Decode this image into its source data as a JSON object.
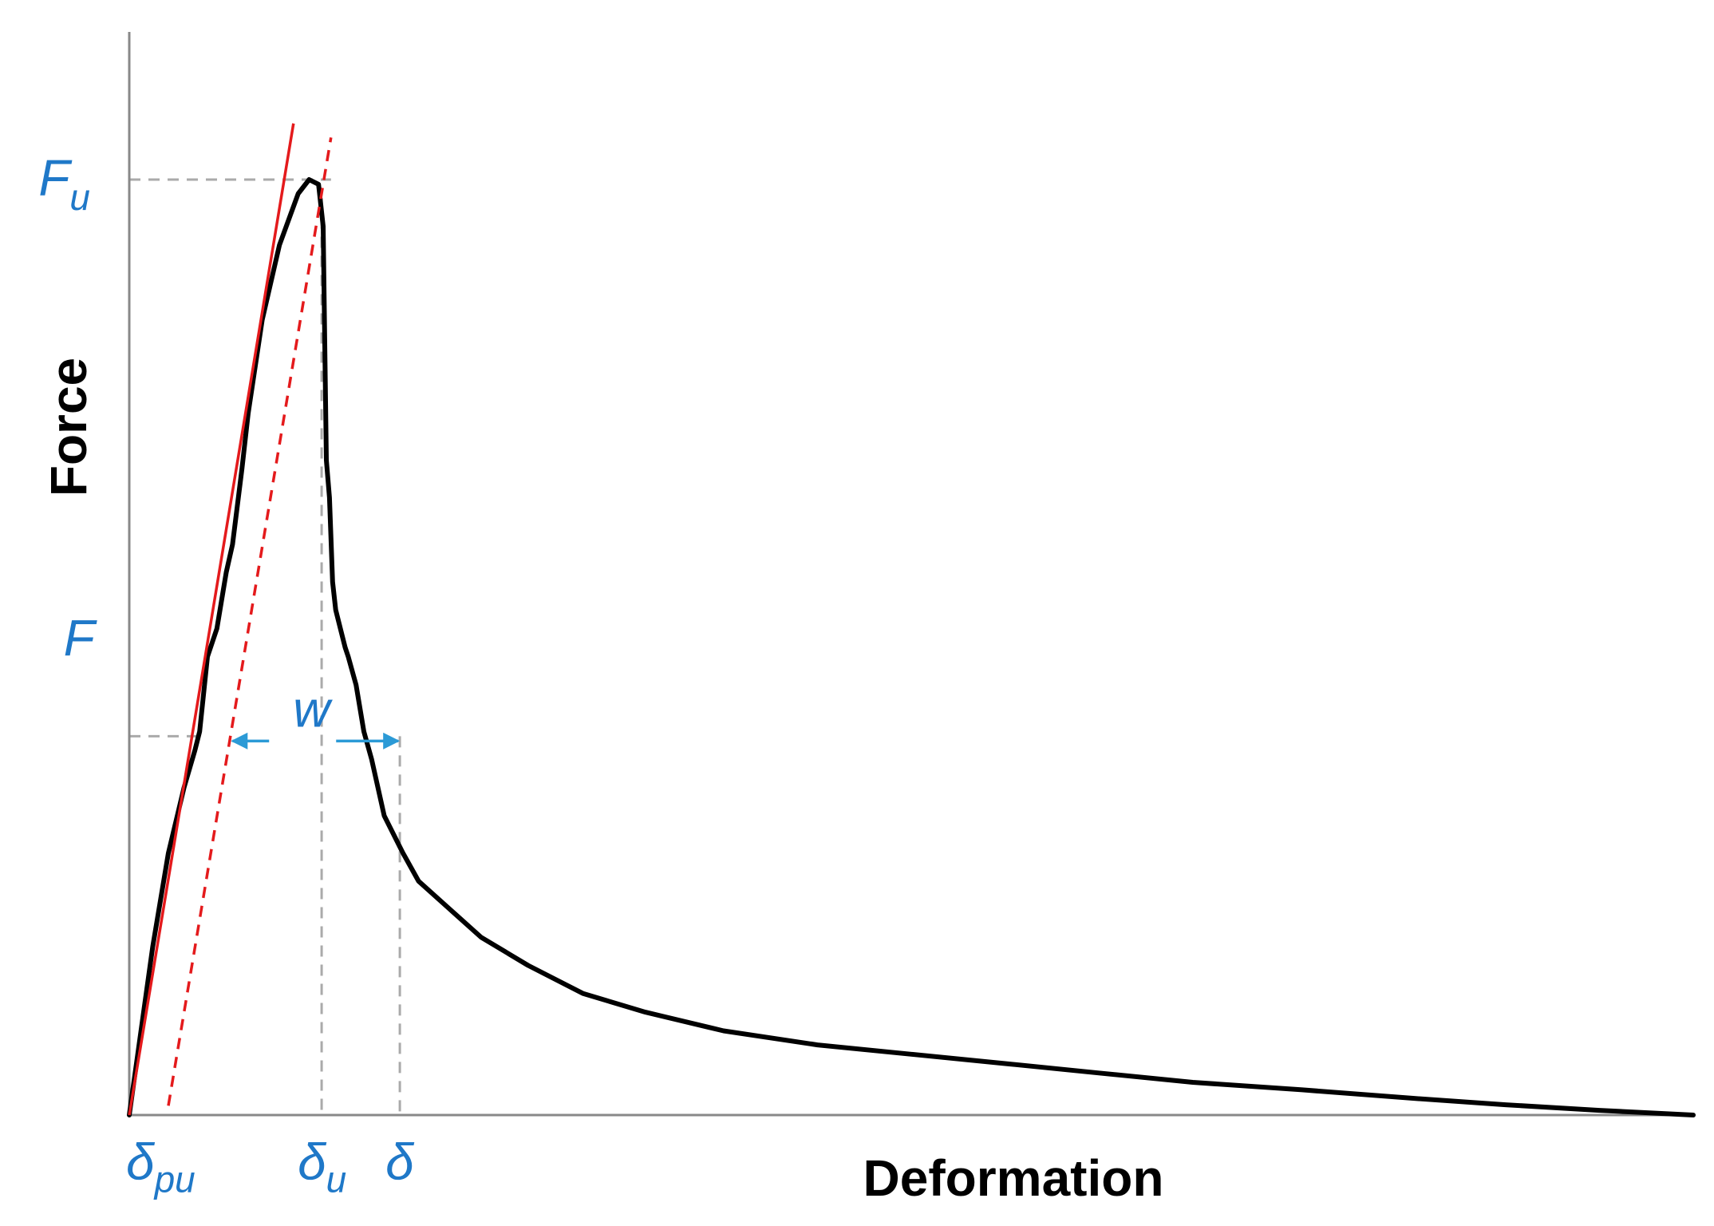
{
  "chart_data": {
    "type": "line",
    "xlabel": "Deformation",
    "ylabel": "Force",
    "xlim": [
      0,
      100
    ],
    "ylim": [
      0,
      100
    ],
    "grid": false,
    "legend": "none",
    "series": [
      {
        "kind": "measured-curve",
        "color": "#000000",
        "x": [
          0,
          1.5,
          2.5,
          3.5,
          4.2,
          4.5,
          5.0,
          5.6,
          6.2,
          6.6,
          7.2,
          7.6,
          8.5,
          9.6,
          10.8,
          11.5,
          12.1,
          12.4,
          12.6,
          12.8,
          13.0,
          13.2,
          13.5,
          13.8,
          14.0,
          14.5,
          15.0,
          15.5,
          16.3,
          17.5,
          18.5,
          20.5,
          22.5,
          25.5,
          29,
          33,
          38,
          44,
          50,
          56,
          62,
          68,
          75,
          82,
          88,
          94,
          100
        ],
        "y": [
          0,
          18,
          28,
          35,
          39,
          41,
          49,
          52,
          58,
          61,
          69,
          75,
          85,
          93,
          98.5,
          100,
          99.5,
          95,
          70,
          66,
          57,
          54,
          52,
          50,
          49,
          46,
          41,
          38,
          32,
          28,
          25,
          22,
          19,
          16,
          13,
          11,
          9,
          7.5,
          6.5,
          5.5,
          4.5,
          3.5,
          2.7,
          1.8,
          1.1,
          0.5,
          0
        ]
      },
      {
        "kind": "tangent",
        "style": "solid",
        "color": "#e41a1c",
        "x": [
          0,
          10.5
        ],
        "y": [
          0,
          106
        ]
      },
      {
        "kind": "offset-tangent",
        "style": "dashed",
        "color": "#e41a1c",
        "x": [
          2.5,
          12.9
        ],
        "y": [
          1,
          104.5
        ]
      }
    ],
    "reference_lines": {
      "color": "#aaaaaa",
      "Fu_y": 100,
      "F_y": 40.5,
      "delta_u_x": 12.3,
      "delta_x": 17.3
    },
    "width_arrow": {
      "y": 40.5,
      "x_start": 6.5,
      "x_end": 17.3,
      "color": "#2b9ad6"
    },
    "annotations": {
      "color": "#1f78c8",
      "Fu": {
        "main": "F",
        "sub": "u",
        "x": -5.8,
        "y": 100
      },
      "F": {
        "main": "F",
        "sub": "",
        "x": -4.2,
        "y": 51
      },
      "delta_pu": {
        "main": "δ",
        "sub": "pu",
        "x": 0,
        "y": -5
      },
      "delta_u": {
        "main": "δ",
        "sub": "u",
        "x": 12.3,
        "y": -5
      },
      "delta": {
        "main": "δ",
        "sub": "",
        "x": 17.3,
        "y": -5
      },
      "w": {
        "main": "w",
        "sub": "",
        "x": 11.8,
        "y": 41.5
      }
    }
  }
}
